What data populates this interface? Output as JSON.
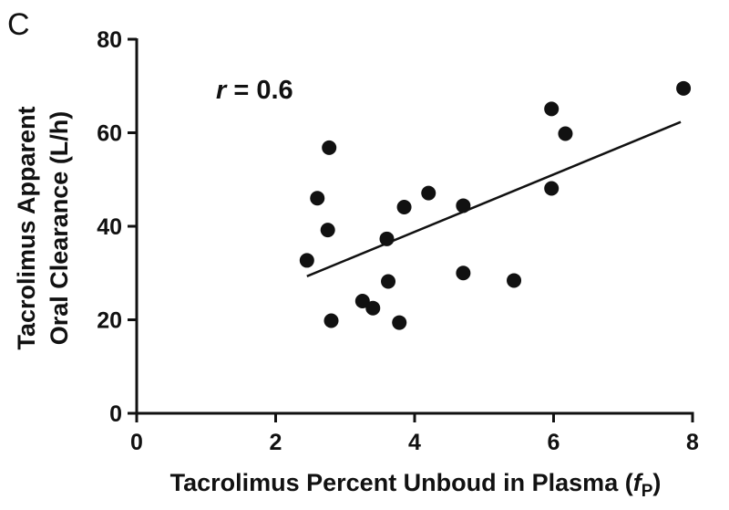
{
  "panel_label": "C",
  "chart_data": {
    "type": "scatter",
    "xlabel_main": "Tacrolimus Percent Unboud in Plasma (",
    "xlabel_italic": "f",
    "xlabel_sub": "P",
    "xlabel_close": ")",
    "ylabel_line1": "Tacrolimus Apparent",
    "ylabel_line2": "Oral Clearance (L/h)",
    "xlim": [
      0,
      8
    ],
    "ylim": [
      0,
      80
    ],
    "x_ticks": [
      0,
      2,
      4,
      6,
      8
    ],
    "y_ticks": [
      0,
      20,
      40,
      60,
      80
    ],
    "x_tick_labels": [
      "0",
      "2",
      "4",
      "6",
      "8"
    ],
    "y_tick_labels": [
      "0",
      "20",
      "40",
      "60",
      "80"
    ],
    "grid": false,
    "annotation_r": "r",
    "annotation_value": " = 0.6",
    "points": [
      {
        "x": 2.45,
        "y": 32.7
      },
      {
        "x": 2.6,
        "y": 46.0
      },
      {
        "x": 2.75,
        "y": 39.2
      },
      {
        "x": 2.77,
        "y": 56.8
      },
      {
        "x": 2.8,
        "y": 19.8
      },
      {
        "x": 3.25,
        "y": 24.0
      },
      {
        "x": 3.4,
        "y": 22.5
      },
      {
        "x": 3.6,
        "y": 37.3
      },
      {
        "x": 3.62,
        "y": 28.2
      },
      {
        "x": 3.78,
        "y": 19.4
      },
      {
        "x": 3.85,
        "y": 44.1
      },
      {
        "x": 4.2,
        "y": 47.1
      },
      {
        "x": 4.7,
        "y": 44.4
      },
      {
        "x": 4.7,
        "y": 30.0
      },
      {
        "x": 5.43,
        "y": 28.4
      },
      {
        "x": 5.97,
        "y": 65.1
      },
      {
        "x": 5.97,
        "y": 48.1
      },
      {
        "x": 6.17,
        "y": 59.8
      },
      {
        "x": 7.87,
        "y": 69.5
      }
    ],
    "fit_line": {
      "x": [
        2.45,
        7.83
      ],
      "y": [
        29.3,
        62.3
      ]
    }
  }
}
